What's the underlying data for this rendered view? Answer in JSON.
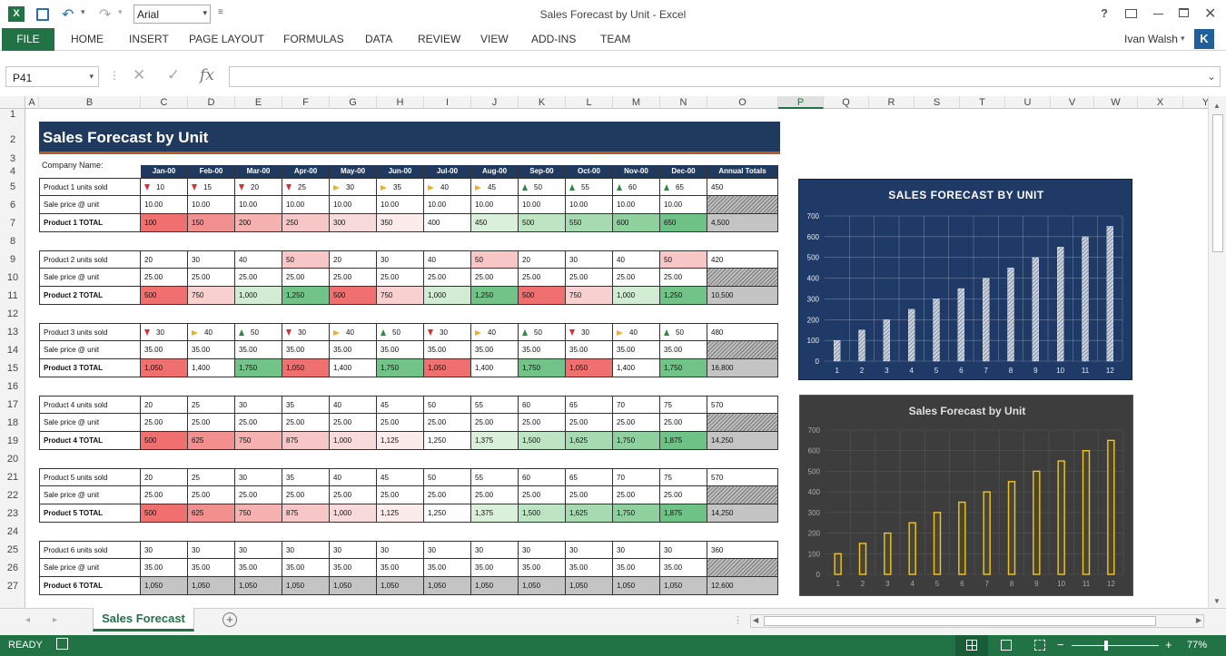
{
  "window": {
    "title": "Sales Forecast by Unit - Excel",
    "font_name": "Arial",
    "user": "Ivan Walsh",
    "user_initial": "K",
    "help": "?"
  },
  "ribbon": {
    "tabs": [
      "FILE",
      "HOME",
      "INSERT",
      "PAGE LAYOUT",
      "FORMULAS",
      "DATA",
      "REVIEW",
      "VIEW",
      "ADD-INS",
      "TEAM"
    ]
  },
  "formula_bar": {
    "name_box": "P41",
    "fx": "fx",
    "value": ""
  },
  "columns": [
    "A",
    "B",
    "C",
    "D",
    "E",
    "F",
    "G",
    "H",
    "I",
    "J",
    "K",
    "L",
    "M",
    "N",
    "O",
    "P",
    "Q",
    "R",
    "S",
    "T",
    "U",
    "V",
    "W",
    "X",
    "Y"
  ],
  "rows": [
    "1",
    "2",
    "3",
    "4",
    "5",
    "6",
    "7",
    "8",
    "9",
    "10",
    "11",
    "12",
    "13",
    "14",
    "15",
    "16",
    "17",
    "18",
    "19",
    "20",
    "21",
    "22",
    "23",
    "24",
    "25",
    "26",
    "27"
  ],
  "sheet": {
    "title": "Sales Forecast by Unit",
    "company_label": "Company Name:",
    "months": [
      "Jan-00",
      "Feb-00",
      "Mar-00",
      "Apr-00",
      "May-00",
      "Jun-00",
      "Jul-00",
      "Aug-00",
      "Sep-00",
      "Oct-00",
      "Nov-00",
      "Dec-00"
    ],
    "annual_header": "Annual Totals",
    "products": [
      {
        "units_label": "Product 1 units sold",
        "price_label": "Sale price @ unit",
        "total_label": "Product 1 TOTAL",
        "units": [
          "10",
          "15",
          "20",
          "25",
          "30",
          "35",
          "40",
          "45",
          "50",
          "55",
          "60",
          "65"
        ],
        "units_total": "450",
        "arrows": [
          "down",
          "down",
          "down",
          "down",
          "right",
          "right",
          "right",
          "right",
          "up",
          "up",
          "up",
          "up"
        ],
        "price": [
          "10.00",
          "10.00",
          "10.00",
          "10.00",
          "10.00",
          "10.00",
          "10.00",
          "10.00",
          "10.00",
          "10.00",
          "10.00",
          "10.00"
        ],
        "totals": [
          "100",
          "150",
          "200",
          "250",
          "300",
          "350",
          "400",
          "450",
          "500",
          "550",
          "600",
          "650"
        ],
        "grand": "4,500",
        "colors": [
          "#f07070",
          "#f29090",
          "#f5b0b0",
          "#f7c6c6",
          "#f9dada",
          "#fcebeb",
          "#fefefe",
          "#daf0da",
          "#bde5c4",
          "#a6dbb1",
          "#8ed19f",
          "#6fc285"
        ]
      },
      {
        "units_label": "Product 2 units sold",
        "price_label": "Sale price @ unit",
        "total_label": "Product 2 TOTAL",
        "units": [
          "20",
          "30",
          "40",
          "50",
          "20",
          "30",
          "40",
          "50",
          "20",
          "30",
          "40",
          "50"
        ],
        "units_total": "420",
        "arrows": [
          "",
          "",
          "",
          "",
          "",
          "",
          "",
          "",
          "",
          "",
          "",
          ""
        ],
        "unit_colors": [
          "",
          "",
          "",
          "#f9c6c6",
          "",
          "",
          "",
          "#f9c6c6",
          "",
          "",
          "",
          "#f9c6c6"
        ],
        "price": [
          "25.00",
          "25.00",
          "25.00",
          "25.00",
          "25.00",
          "25.00",
          "25.00",
          "25.00",
          "25.00",
          "25.00",
          "25.00",
          "25.00"
        ],
        "totals": [
          "500",
          "750",
          "1,000",
          "1,250",
          "500",
          "750",
          "1,000",
          "1,250",
          "500",
          "750",
          "1,000",
          "1,250"
        ],
        "grand": "10,500",
        "colors": [
          "#f07070",
          "#f8d0d0",
          "#d2ecd4",
          "#72c387",
          "#f07070",
          "#f8d0d0",
          "#d2ecd4",
          "#72c387",
          "#f07070",
          "#f8d0d0",
          "#d2ecd4",
          "#72c387"
        ]
      },
      {
        "units_label": "Product 3 units sold",
        "price_label": "Sale price @ unit",
        "total_label": "Product 3 TOTAL",
        "units": [
          "30",
          "40",
          "50",
          "30",
          "40",
          "50",
          "30",
          "40",
          "50",
          "30",
          "40",
          "50"
        ],
        "units_total": "480",
        "arrows": [
          "down",
          "right",
          "up",
          "down",
          "right",
          "up",
          "down",
          "right",
          "up",
          "down",
          "right",
          "up"
        ],
        "price": [
          "35.00",
          "35.00",
          "35.00",
          "35.00",
          "35.00",
          "35.00",
          "35.00",
          "35.00",
          "35.00",
          "35.00",
          "35.00",
          "35.00"
        ],
        "totals": [
          "1,050",
          "1,400",
          "1,750",
          "1,050",
          "1,400",
          "1,750",
          "1,050",
          "1,400",
          "1,750",
          "1,050",
          "1,400",
          "1,750"
        ],
        "grand": "16,800",
        "colors": [
          "#f07070",
          "#fefefe",
          "#72c387",
          "#f07070",
          "#fefefe",
          "#72c387",
          "#f07070",
          "#fefefe",
          "#72c387",
          "#f07070",
          "#fefefe",
          "#72c387"
        ]
      },
      {
        "units_label": "Product 4 units sold",
        "price_label": "Sale price @ unit",
        "total_label": "Product 4 TOTAL",
        "units": [
          "20",
          "25",
          "30",
          "35",
          "40",
          "45",
          "50",
          "55",
          "60",
          "65",
          "70",
          "75"
        ],
        "units_total": "570",
        "arrows": [
          "",
          "",
          "",
          "",
          "",
          "",
          "",
          "",
          "",
          "",
          "",
          ""
        ],
        "price": [
          "25.00",
          "25.00",
          "25.00",
          "25.00",
          "25.00",
          "25.00",
          "25.00",
          "25.00",
          "25.00",
          "25.00",
          "25.00",
          "25.00"
        ],
        "totals": [
          "500",
          "625",
          "750",
          "875",
          "1,000",
          "1,125",
          "1,250",
          "1,375",
          "1,500",
          "1,625",
          "1,750",
          "1,875"
        ],
        "grand": "14,250",
        "colors": [
          "#f07070",
          "#f29090",
          "#f5b0b0",
          "#f7c6c6",
          "#f9dada",
          "#fcebeb",
          "#fefefe",
          "#daf0da",
          "#bde5c4",
          "#a6dbb1",
          "#8ed19f",
          "#6fc285"
        ]
      },
      {
        "units_label": "Product 5 units sold",
        "price_label": "Sale price @ unit",
        "total_label": "Product 5 TOTAL",
        "units": [
          "20",
          "25",
          "30",
          "35",
          "40",
          "45",
          "50",
          "55",
          "60",
          "65",
          "70",
          "75"
        ],
        "units_total": "570",
        "arrows": [
          "",
          "",
          "",
          "",
          "",
          "",
          "",
          "",
          "",
          "",
          "",
          ""
        ],
        "price": [
          "25.00",
          "25.00",
          "25.00",
          "25.00",
          "25.00",
          "25.00",
          "25.00",
          "25.00",
          "25.00",
          "25.00",
          "25.00",
          "25.00"
        ],
        "totals": [
          "500",
          "625",
          "750",
          "875",
          "1,000",
          "1,125",
          "1,250",
          "1,375",
          "1,500",
          "1,625",
          "1,750",
          "1,875"
        ],
        "grand": "14,250",
        "colors": [
          "#f07070",
          "#f29090",
          "#f5b0b0",
          "#f7c6c6",
          "#f9dada",
          "#fcebeb",
          "#fefefe",
          "#daf0da",
          "#bde5c4",
          "#a6dbb1",
          "#8ed19f",
          "#6fc285"
        ]
      },
      {
        "units_label": "Product 6 units sold",
        "price_label": "Sale price @ unit",
        "total_label": "Product 6 TOTAL",
        "units": [
          "30",
          "30",
          "30",
          "30",
          "30",
          "30",
          "30",
          "30",
          "30",
          "30",
          "30",
          "30"
        ],
        "units_total": "360",
        "arrows": [
          "",
          "",
          "",
          "",
          "",
          "",
          "",
          "",
          "",
          "",
          "",
          ""
        ],
        "price": [
          "35.00",
          "35.00",
          "35.00",
          "35.00",
          "35.00",
          "35.00",
          "35.00",
          "35.00",
          "35.00",
          "35.00",
          "35.00",
          "35.00"
        ],
        "totals": [
          "1,050",
          "1,050",
          "1,050",
          "1,050",
          "1,050",
          "1,050",
          "1,050",
          "1,050",
          "1,050",
          "1,050",
          "1,050",
          "1,050"
        ],
        "grand": "12,600",
        "colors": [
          "#c4c4c4",
          "#c4c4c4",
          "#c4c4c4",
          "#c4c4c4",
          "#c4c4c4",
          "#c4c4c4",
          "#c4c4c4",
          "#c4c4c4",
          "#c4c4c4",
          "#c4c4c4",
          "#c4c4c4",
          "#c4c4c4"
        ]
      }
    ]
  },
  "chart_data": [
    {
      "type": "bar",
      "title": "SALES FORECAST BY UNIT",
      "categories": [
        "1",
        "2",
        "3",
        "4",
        "5",
        "6",
        "7",
        "8",
        "9",
        "10",
        "11",
        "12"
      ],
      "values": [
        100,
        150,
        200,
        250,
        300,
        350,
        400,
        450,
        500,
        550,
        600,
        650
      ],
      "ylim": [
        0,
        700
      ],
      "yticks": [
        "0",
        "100",
        "200",
        "300",
        "400",
        "500",
        "600",
        "700"
      ],
      "grid": true,
      "background": "#1f3a66"
    },
    {
      "type": "bar",
      "title": "Sales Forecast by Unit",
      "categories": [
        "1",
        "2",
        "3",
        "4",
        "5",
        "6",
        "7",
        "8",
        "9",
        "10",
        "11",
        "12"
      ],
      "values": [
        100,
        150,
        200,
        250,
        300,
        350,
        400,
        450,
        500,
        550,
        600,
        650
      ],
      "ylim": [
        0,
        700
      ],
      "yticks": [
        "0",
        "100",
        "200",
        "300",
        "400",
        "500",
        "600",
        "700"
      ],
      "grid": true,
      "background": "#3d3d3d"
    }
  ],
  "tabs": {
    "active": "Sales Forecast",
    "add_icon": "+"
  },
  "status": {
    "ready": "READY",
    "zoom": "77%",
    "minus": "−",
    "plus": "+"
  },
  "colors": {
    "excel_green": "#217346",
    "header_navy": "#1f3a5e"
  }
}
